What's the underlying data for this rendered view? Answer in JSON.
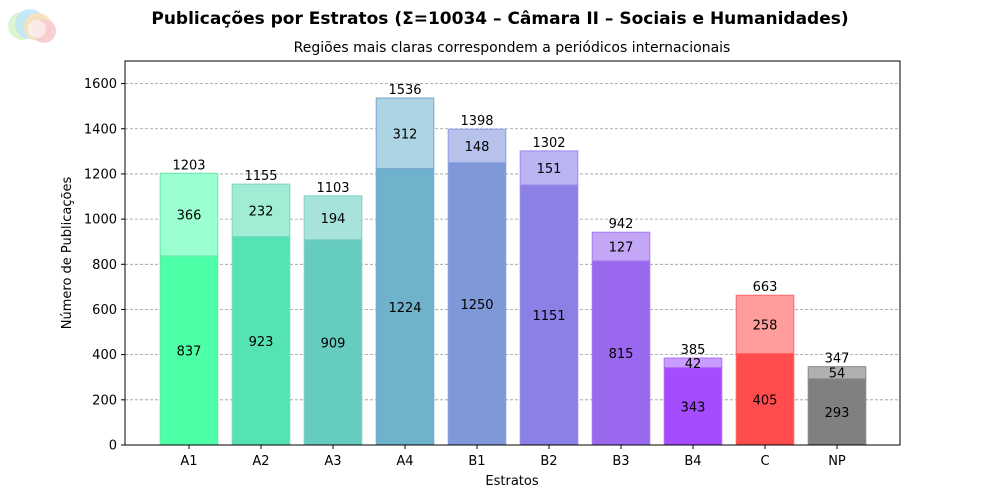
{
  "chart_data": {
    "type": "bar",
    "title": "Publicações por Estratos (Σ=10034 – Câmara II – Sociais e Humanidades)",
    "subtitle": "Regiões mais claras correspondem a periódicos internacionais",
    "xlabel": "Estratos",
    "ylabel": "Número de Publicações",
    "ylim": [
      0,
      1700
    ],
    "yticks": [
      0,
      200,
      400,
      600,
      800,
      1000,
      1200,
      1400,
      1600
    ],
    "grid": "horizontal dashed",
    "categories": [
      "A1",
      "A2",
      "A3",
      "A4",
      "B1",
      "B2",
      "B3",
      "B4",
      "C",
      "NP"
    ],
    "series": [
      {
        "values": [
          837,
          923,
          909,
          1224,
          1250,
          1151,
          815,
          343,
          405,
          293
        ]
      },
      {
        "values": [
          366,
          232,
          194,
          312,
          148,
          151,
          127,
          42,
          258,
          54
        ]
      }
    ],
    "totals": [
      1203,
      1155,
      1103,
      1536,
      1398,
      1302,
      942,
      385,
      663,
      347
    ],
    "colors": {
      "base": [
        "#4dffa6",
        "#55e2b5",
        "#66ccc0",
        "#6fb2cc",
        "#7f98d8",
        "#8a80e5",
        "#9a68ee",
        "#a54cff",
        "#ff4d4d",
        "#808080"
      ],
      "top": [
        "#9cffcf",
        "#a0ecd4",
        "#a7e3dc",
        "#acd4e2",
        "#b6c1ec",
        "#bbb4f2",
        "#c3a6f6",
        "#c99cff",
        "#ff9c9c",
        "#b0b0b0"
      ],
      "edge": [
        "#66e6a8",
        "#77d9bd",
        "#7fcfc6",
        "#7aa6d0",
        "#8a9ee0",
        "#9a8ae8",
        "#a57cee",
        "#b070f5",
        "#ff6666",
        "#8a8a8a"
      ]
    }
  }
}
